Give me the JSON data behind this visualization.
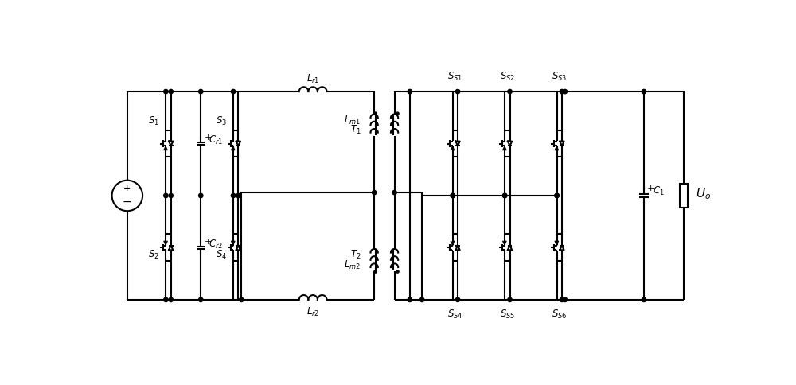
{
  "bg_color": "#ffffff",
  "line_color": "#000000",
  "lw": 1.5,
  "fig_width": 10.0,
  "fig_height": 4.84,
  "dpi": 100
}
